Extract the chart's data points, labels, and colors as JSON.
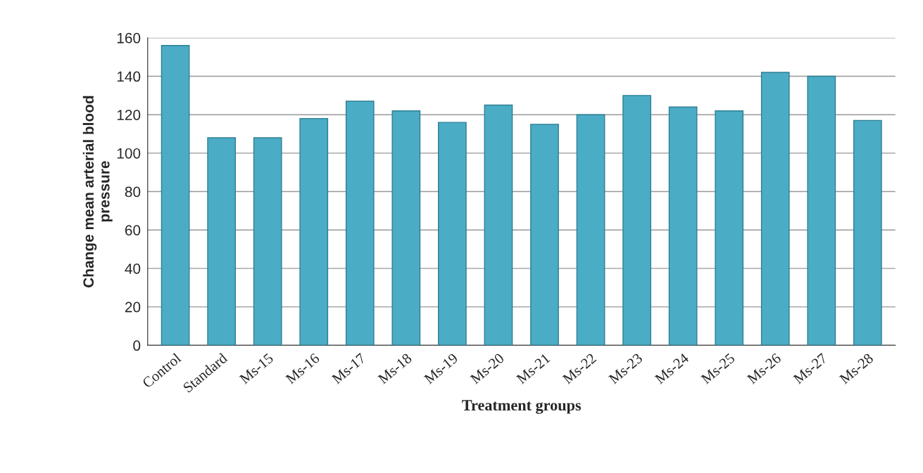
{
  "chart_data": {
    "type": "bar",
    "xlabel": "Treatment groups",
    "ylabel": "Change mean arterial blood\npressure",
    "categories": [
      "Control",
      "Standard",
      "Ms-15",
      "Ms-16",
      "Ms-17",
      "Ms-18",
      "Ms-19",
      "Ms-20",
      "Ms-21",
      "Ms-22",
      "Ms-23",
      "Ms-24",
      "Ms-25",
      "Ms-26",
      "Ms-27",
      "Ms-28"
    ],
    "values": [
      156,
      108,
      108,
      118,
      127,
      122,
      116,
      125,
      115,
      120,
      130,
      124,
      122,
      142,
      140,
      117
    ],
    "color": "#4bacc6",
    "ylim": [
      0,
      160
    ],
    "yticks": [
      0,
      20,
      40,
      60,
      80,
      100,
      120,
      140,
      160
    ],
    "grid": "y"
  }
}
